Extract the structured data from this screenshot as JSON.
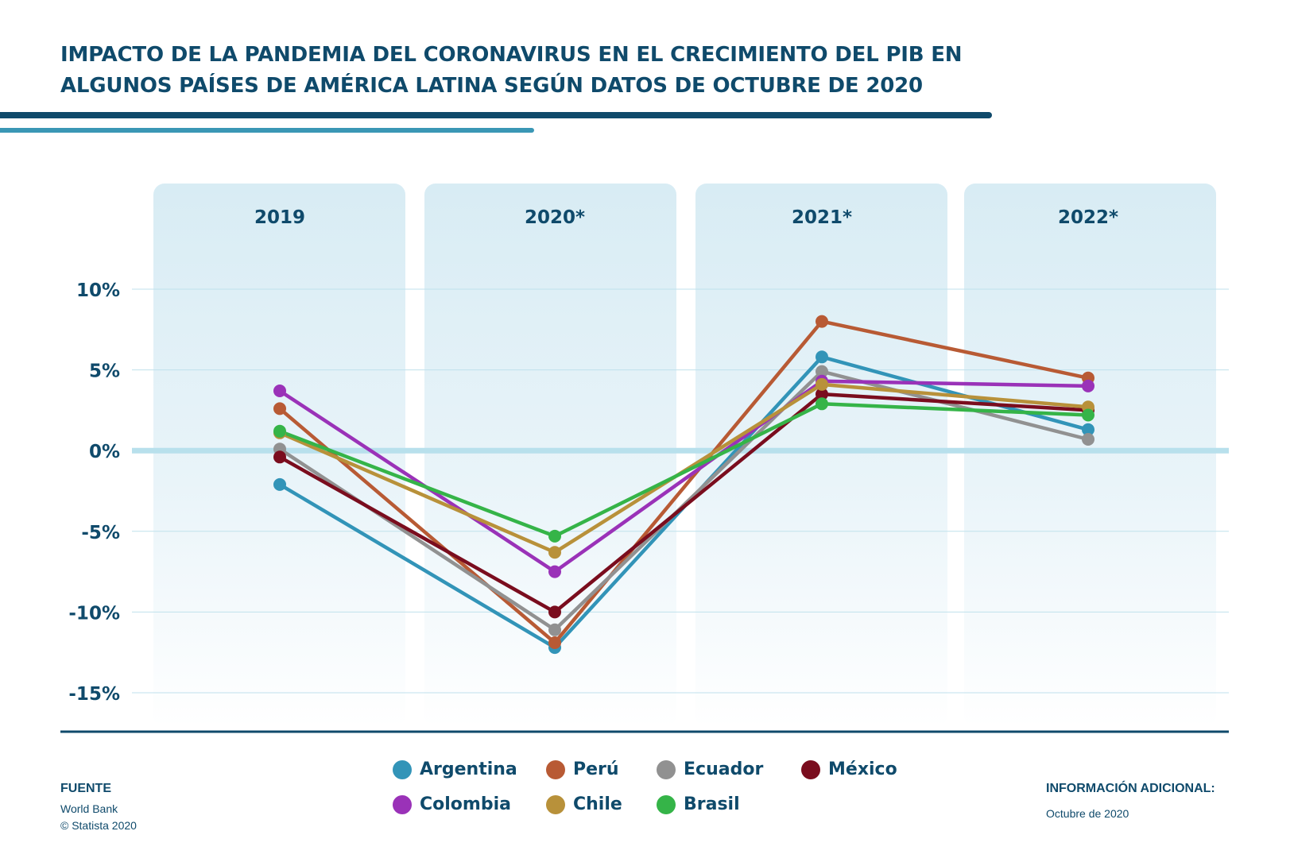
{
  "title_lines": [
    "IMPACTO DE LA PANDEMIA DEL CORONAVIRUS EN EL CRECIMIENTO DEL PIB EN",
    "ALGUNOS PAÍSES DE AMÉRICA LATINA SEGÚN DATOS DE OCTUBRE DE 2020"
  ],
  "colors": {
    "title": "#0f4a6b",
    "accent_dark": "#0f4a6b",
    "accent_light": "#3a97b5",
    "zero_line": "#b8e0ec",
    "column_bg": "#dbeef5"
  },
  "chart_data": {
    "type": "line",
    "categories": [
      "2019",
      "2020*",
      "2021*",
      "2022*"
    ],
    "ylim": [
      -15,
      10
    ],
    "yticks": [
      10,
      5,
      0,
      -5,
      -10,
      -15
    ],
    "ytick_labels": [
      "10%",
      "5%",
      "0%",
      "-5%",
      "-10%",
      "-15%"
    ],
    "grid": true,
    "legend_position": "bottom",
    "series": [
      {
        "name": "Argentina",
        "color": "#3294b8",
        "values": [
          -2.1,
          -12.2,
          5.8,
          1.3
        ]
      },
      {
        "name": "Perú",
        "color": "#b85a34",
        "values": [
          2.6,
          -11.9,
          8.0,
          4.5
        ]
      },
      {
        "name": "Ecuador",
        "color": "#919191",
        "values": [
          0.1,
          -11.1,
          4.9,
          0.7
        ]
      },
      {
        "name": "México",
        "color": "#7a0d1e",
        "values": [
          -0.4,
          -10.0,
          3.5,
          2.5
        ]
      },
      {
        "name": "Colombia",
        "color": "#9a32b8",
        "values": [
          3.7,
          -7.5,
          4.3,
          4.0
        ]
      },
      {
        "name": "Chile",
        "color": "#b8913a",
        "values": [
          1.1,
          -6.3,
          4.1,
          2.7
        ]
      },
      {
        "name": "Brasil",
        "color": "#35b448",
        "values": [
          1.2,
          -5.3,
          2.9,
          2.2
        ]
      }
    ]
  },
  "source": {
    "label": "FUENTE",
    "lines": [
      "World Bank",
      "© Statista 2020"
    ]
  },
  "info": {
    "label": "INFORMACIÓN ADICIONAL:",
    "text": "Octubre de 2020"
  }
}
